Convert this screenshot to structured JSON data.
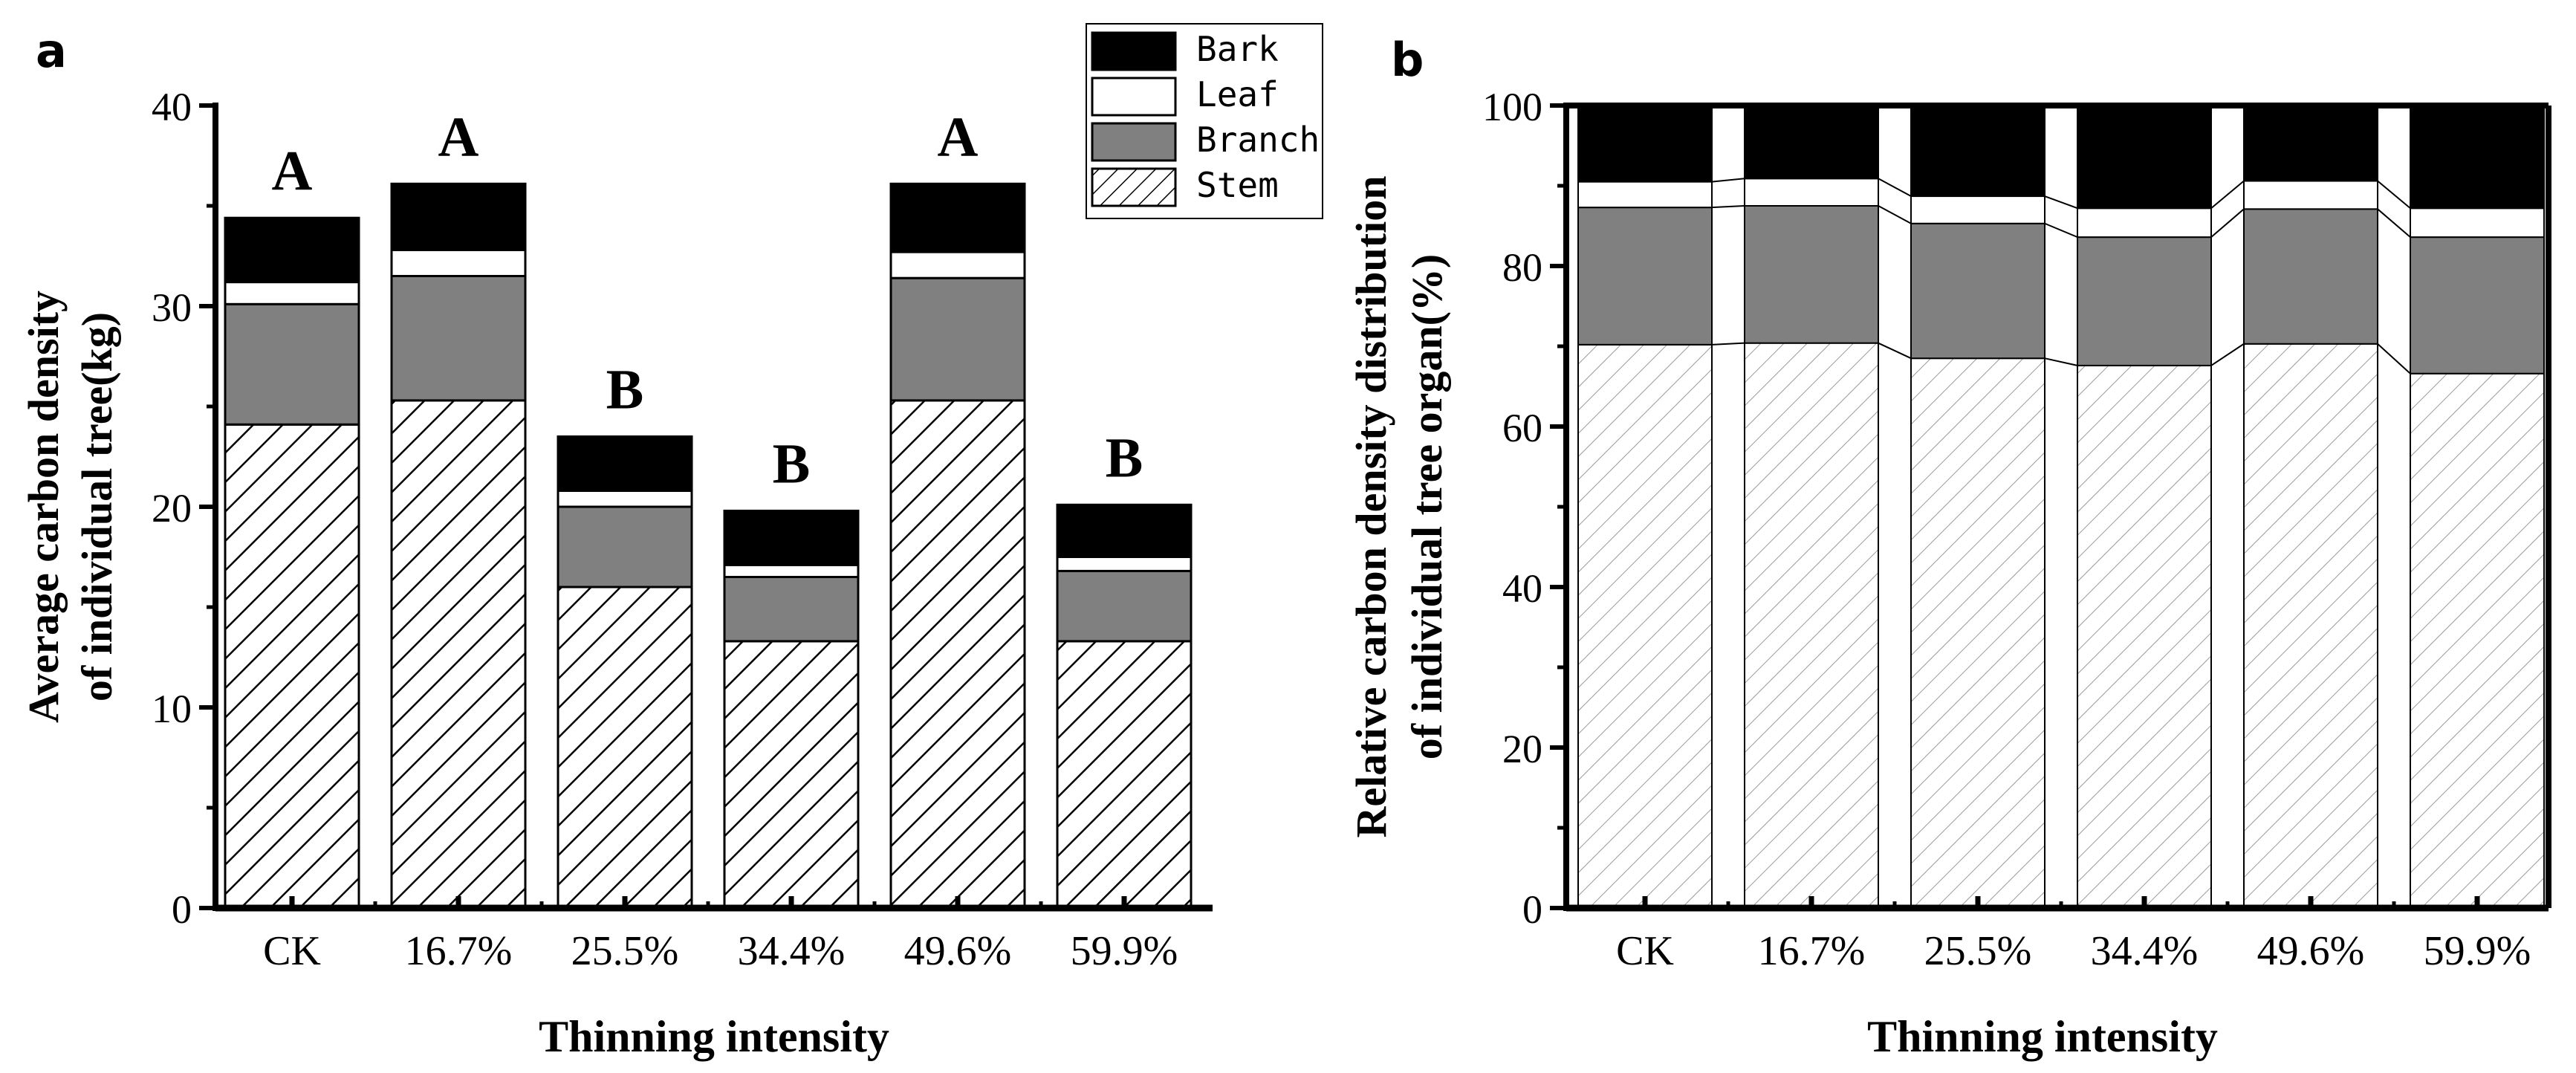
{
  "chart_data": [
    {
      "panel": "a",
      "type": "bar",
      "stacked": true,
      "categories": [
        "CK",
        "16.7%",
        "25.5%",
        "34.4%",
        "49.6%",
        "59.9%"
      ],
      "series": [
        {
          "name": "Stem",
          "values": [
            24.1,
            25.3,
            16.0,
            13.3,
            25.3,
            13.3
          ]
        },
        {
          "name": "Branch",
          "values": [
            6.0,
            6.2,
            4.0,
            3.2,
            6.1,
            3.5
          ]
        },
        {
          "name": "Leaf",
          "values": [
            1.1,
            1.3,
            0.8,
            0.6,
            1.3,
            0.7
          ]
        },
        {
          "name": "Bark",
          "values": [
            3.2,
            3.3,
            2.7,
            2.7,
            3.4,
            2.6
          ]
        }
      ],
      "significance_letters": [
        "A",
        "A",
        "B",
        "B",
        "A",
        "B"
      ],
      "title": "",
      "xlabel": "Thinning intensity",
      "ylabel_lines": [
        "Average carbon density",
        "of individual tree(kg)"
      ],
      "ylim": [
        0,
        40
      ],
      "yticks": [
        "0",
        "10",
        "20",
        "30",
        "40"
      ],
      "legend": [
        "Bark",
        "Leaf",
        "Branch",
        "Stem"
      ],
      "grid": false
    },
    {
      "panel": "b",
      "type": "bar",
      "stacked": true,
      "percent": true,
      "categories": [
        "CK",
        "16.7%",
        "25.5%",
        "34.4%",
        "49.6%",
        "59.9%"
      ],
      "series": [
        {
          "name": "Stem",
          "values": [
            70.2,
            70.4,
            68.5,
            67.6,
            70.3,
            66.6
          ]
        },
        {
          "name": "Branch",
          "values": [
            17.1,
            17.1,
            16.8,
            16.0,
            16.8,
            17.0
          ]
        },
        {
          "name": "Leaf",
          "values": [
            3.2,
            3.4,
            3.4,
            3.6,
            3.5,
            3.6
          ]
        },
        {
          "name": "Bark",
          "values": [
            9.5,
            9.1,
            11.3,
            12.8,
            9.4,
            12.8
          ]
        }
      ],
      "title": "",
      "xlabel": "Thinning intensity",
      "ylabel_lines": [
        "Relative carbon density distribution",
        "of individual tree organ(%)"
      ],
      "ylim": [
        0,
        100
      ],
      "yticks": [
        "0",
        "20",
        "40",
        "60",
        "80",
        "100"
      ],
      "grid": false
    }
  ],
  "panel_labels": {
    "a": "a",
    "b": "b"
  },
  "colors": {
    "Bark": "#000000",
    "Leaf": "#ffffff",
    "Branch": "#808080",
    "Stem": "hatch"
  }
}
